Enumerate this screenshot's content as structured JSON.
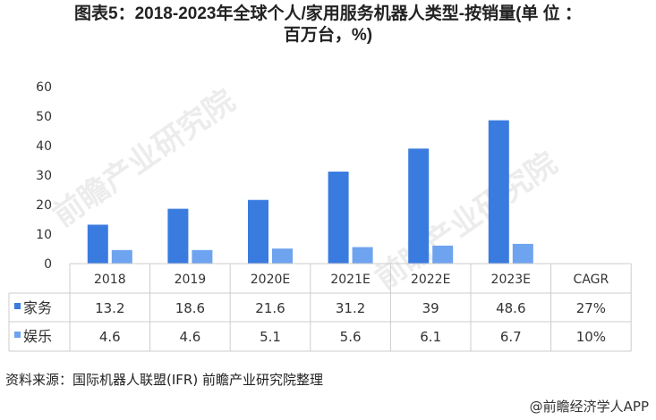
{
  "title_line1": "图表5：2018-2023年全球个人/家用服务机器人类型-按销量(单 位 ：",
  "title_line2": "百万台，%)",
  "chart_data": {
    "type": "bar",
    "categories": [
      "2018",
      "2019",
      "2020E",
      "2021E",
      "2022E",
      "2023E"
    ],
    "extra_column": "CAGR",
    "series": [
      {
        "name": "家务",
        "values": [
          13.2,
          18.6,
          21.6,
          31.2,
          39,
          48.6
        ],
        "cagr": "27%",
        "color": "#3a7be0"
      },
      {
        "name": "娱乐",
        "values": [
          4.6,
          4.6,
          5.1,
          5.6,
          6.1,
          6.7
        ],
        "cagr": "10%",
        "color": "#6ea3ef"
      }
    ],
    "ylim": [
      0,
      60
    ],
    "yticks": [
      0,
      10,
      20,
      30,
      40,
      50,
      60
    ],
    "grid": false,
    "legend": "data-table"
  },
  "watermark": "前瞻产业研究院",
  "source": "资料来源：国际机器人联盟(IFR)   前瞻产业研究院整理",
  "credit": "@前瞻经济学人APP"
}
